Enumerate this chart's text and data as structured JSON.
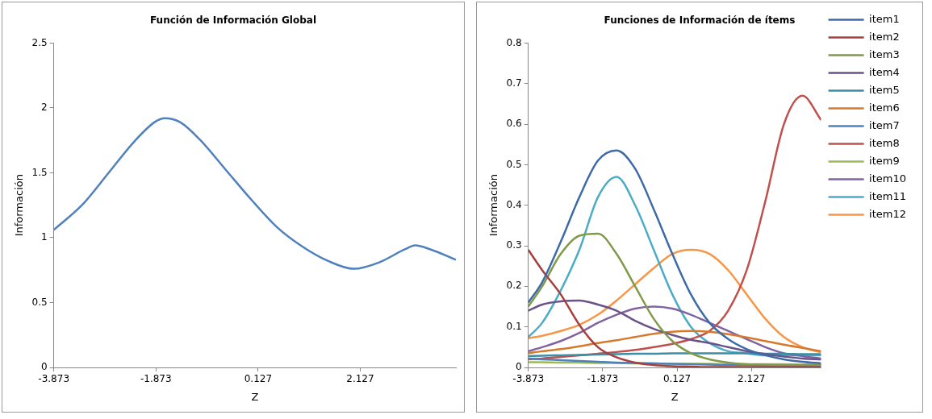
{
  "chart_data": [
    {
      "type": "line",
      "title": "Función de Información Global",
      "xlabel": "Z",
      "ylabel": "Información",
      "xlim": [
        -3.873,
        4
      ],
      "xticks": [
        -3.873,
        -1.873,
        0.127,
        2.127
      ],
      "ylim": [
        0,
        2.5
      ],
      "yticks": [
        0,
        0.5,
        1,
        1.5,
        2,
        2.5
      ],
      "legend": false,
      "x": [
        -3.873,
        -3.3,
        -2.8,
        -2.3,
        -1.9,
        -1.7,
        -1.4,
        -1,
        -0.5,
        0,
        0.5,
        1,
        1.5,
        2,
        2.5,
        3,
        3.2,
        3.5,
        4
      ],
      "series": [
        {
          "color": "#4f81bd",
          "values": [
            1.06,
            1.26,
            1.5,
            1.74,
            1.89,
            1.92,
            1.89,
            1.75,
            1.52,
            1.29,
            1.08,
            0.93,
            0.82,
            0.76,
            0.81,
            0.91,
            0.94,
            0.91,
            0.83
          ]
        }
      ]
    },
    {
      "type": "line",
      "title": "Funciones de Información de ítems",
      "xlabel": "Z",
      "ylabel": "Información",
      "xlim": [
        -3.873,
        4
      ],
      "xticks": [
        -3.873,
        -1.873,
        0.127,
        2.127
      ],
      "ylim": [
        0,
        0.8
      ],
      "yticks": [
        0,
        0.1,
        0.2,
        0.3,
        0.4,
        0.5,
        0.6,
        0.7,
        0.8
      ],
      "legend": "right",
      "x": [
        -3.873,
        -3.5,
        -3,
        -2.5,
        -2,
        -1.5,
        -1,
        -0.5,
        0,
        0.5,
        1,
        1.5,
        2,
        2.5,
        3,
        3.5,
        4
      ],
      "series": [
        {
          "name": "item1",
          "color": "#3f6aa8",
          "values": [
            0.16,
            0.21,
            0.31,
            0.42,
            0.51,
            0.535,
            0.49,
            0.39,
            0.28,
            0.18,
            0.11,
            0.07,
            0.045,
            0.03,
            0.02,
            0.014,
            0.01
          ]
        },
        {
          "name": "item2",
          "color": "#a5403d",
          "values": [
            0.29,
            0.24,
            0.18,
            0.105,
            0.05,
            0.025,
            0.012,
            0.006,
            0.003,
            0.002,
            0.001,
            0.001,
            0.001,
            0.001,
            0.001,
            0.001,
            0.001
          ]
        },
        {
          "name": "item3",
          "color": "#7f9a48",
          "values": [
            0.15,
            0.2,
            0.28,
            0.325,
            0.33,
            0.28,
            0.2,
            0.12,
            0.065,
            0.035,
            0.02,
            0.012,
            0.008,
            0.007,
            0.006,
            0.006,
            0.006
          ]
        },
        {
          "name": "item4",
          "color": "#69548a",
          "values": [
            0.14,
            0.155,
            0.163,
            0.165,
            0.155,
            0.14,
            0.115,
            0.095,
            0.08,
            0.068,
            0.06,
            0.05,
            0.04,
            0.033,
            0.027,
            0.022,
            0.02
          ]
        },
        {
          "name": "item5",
          "color": "#3b8ea3",
          "values": [
            0.028,
            0.029,
            0.03,
            0.031,
            0.032,
            0.033,
            0.034,
            0.034,
            0.035,
            0.035,
            0.035,
            0.035,
            0.035,
            0.034,
            0.034,
            0.033,
            0.033
          ]
        },
        {
          "name": "item6",
          "color": "#d7792d",
          "values": [
            0.035,
            0.04,
            0.045,
            0.052,
            0.06,
            0.067,
            0.075,
            0.083,
            0.088,
            0.09,
            0.088,
            0.082,
            0.074,
            0.065,
            0.056,
            0.048,
            0.04
          ]
        },
        {
          "name": "item7",
          "color": "#4f81bd",
          "values": [
            0.022,
            0.02,
            0.018,
            0.016,
            0.014,
            0.012,
            0.011,
            0.01,
            0.009,
            0.008,
            0.007,
            0.006,
            0.006,
            0.005,
            0.005,
            0.005,
            0.005
          ]
        },
        {
          "name": "item8",
          "color": "#c0504d",
          "values": [
            0.02,
            0.022,
            0.026,
            0.03,
            0.034,
            0.038,
            0.043,
            0.05,
            0.058,
            0.07,
            0.09,
            0.14,
            0.24,
            0.41,
            0.6,
            0.67,
            0.61
          ]
        },
        {
          "name": "item9",
          "color": "#9bbb59",
          "values": [
            0.013,
            0.013,
            0.012,
            0.012,
            0.011,
            0.011,
            0.01,
            0.01,
            0.009,
            0.009,
            0.009,
            0.008,
            0.008,
            0.008,
            0.008,
            0.007,
            0.007
          ]
        },
        {
          "name": "item10",
          "color": "#8064a2",
          "values": [
            0.04,
            0.05,
            0.065,
            0.085,
            0.11,
            0.13,
            0.145,
            0.15,
            0.145,
            0.13,
            0.11,
            0.09,
            0.07,
            0.05,
            0.035,
            0.028,
            0.022
          ]
        },
        {
          "name": "item11",
          "color": "#4bacc6",
          "values": [
            0.075,
            0.11,
            0.19,
            0.29,
            0.42,
            0.47,
            0.4,
            0.29,
            0.18,
            0.1,
            0.06,
            0.04,
            0.035,
            0.03,
            0.03,
            0.03,
            0.03
          ]
        },
        {
          "name": "item12",
          "color": "#f79646",
          "values": [
            0.072,
            0.078,
            0.09,
            0.105,
            0.13,
            0.165,
            0.205,
            0.245,
            0.28,
            0.29,
            0.28,
            0.24,
            0.18,
            0.12,
            0.075,
            0.05,
            0.037
          ]
        }
      ]
    }
  ]
}
